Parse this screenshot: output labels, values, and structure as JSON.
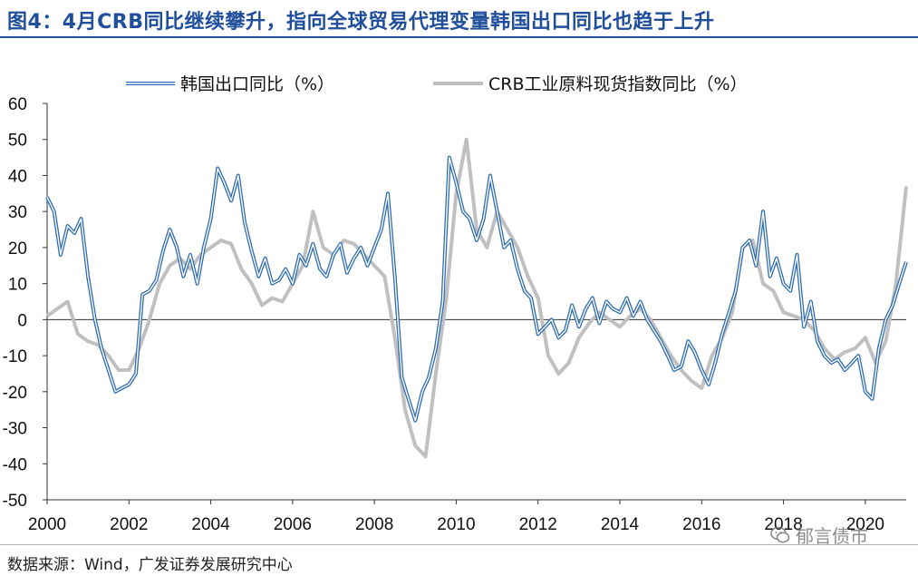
{
  "title": "图4：4月CRB同比继续攀升，指向全球贸易代理变量韩国出口同比也趋于上升",
  "source": "数据来源：Wind，广发证券发展研究中心",
  "watermark": "郁言债市",
  "colors": {
    "title": "#1f4e9c",
    "korea_line": "#2e6db4",
    "crb_line": "#c0c0c0",
    "axis": "#333333"
  },
  "chart_data": {
    "type": "line",
    "title": "",
    "xlabel": "",
    "ylabel": "",
    "ylim": [
      -50,
      60
    ],
    "yticks": [
      -50,
      -40,
      -30,
      -20,
      -10,
      0,
      10,
      20,
      30,
      40,
      50,
      60
    ],
    "xlim": [
      2000.0,
      2021.0
    ],
    "xticks": [
      2000,
      2002,
      2004,
      2006,
      2008,
      2010,
      2012,
      2014,
      2016,
      2018,
      2020
    ],
    "legend_position": "top",
    "series": [
      {
        "name": "韩国出口同比（%）",
        "style": "double-blue",
        "x": [
          2000.0,
          2000.17,
          2000.33,
          2000.5,
          2000.67,
          2000.83,
          2001.0,
          2001.17,
          2001.33,
          2001.5,
          2001.67,
          2001.83,
          2002.0,
          2002.17,
          2002.33,
          2002.5,
          2002.67,
          2002.83,
          2003.0,
          2003.17,
          2003.33,
          2003.5,
          2003.67,
          2003.83,
          2004.0,
          2004.17,
          2004.33,
          2004.5,
          2004.67,
          2004.83,
          2005.0,
          2005.17,
          2005.33,
          2005.5,
          2005.67,
          2005.83,
          2006.0,
          2006.17,
          2006.33,
          2006.5,
          2006.67,
          2006.83,
          2007.0,
          2007.17,
          2007.33,
          2007.5,
          2007.67,
          2007.83,
          2008.0,
          2008.17,
          2008.33,
          2008.5,
          2008.67,
          2008.83,
          2009.0,
          2009.17,
          2009.33,
          2009.5,
          2009.67,
          2009.83,
          2010.0,
          2010.17,
          2010.33,
          2010.5,
          2010.67,
          2010.83,
          2011.0,
          2011.17,
          2011.33,
          2011.5,
          2011.67,
          2011.83,
          2012.0,
          2012.17,
          2012.33,
          2012.5,
          2012.67,
          2012.83,
          2013.0,
          2013.17,
          2013.33,
          2013.5,
          2013.67,
          2013.83,
          2014.0,
          2014.17,
          2014.33,
          2014.5,
          2014.67,
          2014.83,
          2015.0,
          2015.17,
          2015.33,
          2015.5,
          2015.67,
          2015.83,
          2016.0,
          2016.17,
          2016.33,
          2016.5,
          2016.67,
          2016.83,
          2017.0,
          2017.17,
          2017.33,
          2017.5,
          2017.67,
          2017.83,
          2018.0,
          2018.17,
          2018.33,
          2018.5,
          2018.67,
          2018.83,
          2019.0,
          2019.17,
          2019.33,
          2019.5,
          2019.67,
          2019.83,
          2020.0,
          2020.17,
          2020.33,
          2020.5,
          2020.67,
          2020.83,
          2021.0
        ],
        "values": [
          34,
          30,
          18,
          26,
          24,
          28,
          12,
          0,
          -8,
          -14,
          -20,
          -19,
          -18,
          -15,
          7,
          8,
          11,
          19,
          25,
          20,
          12,
          18,
          10,
          20,
          28,
          42,
          38,
          33,
          40,
          27,
          19,
          12,
          17,
          10,
          11,
          14,
          10,
          18,
          15,
          21,
          14,
          12,
          18,
          21,
          13,
          17,
          20,
          15,
          20,
          25,
          35,
          12,
          -16,
          -22,
          -28,
          -20,
          -16,
          -8,
          5,
          45,
          38,
          30,
          28,
          22,
          28,
          40,
          30,
          20,
          22,
          14,
          8,
          6,
          -4,
          -2,
          0,
          -5,
          -3,
          4,
          -2,
          3,
          6,
          -1,
          5,
          3,
          2,
          6,
          1,
          5,
          0,
          -3,
          -6,
          -10,
          -14,
          -13,
          -6,
          -9,
          -14,
          -18,
          -12,
          -4,
          2,
          8,
          20,
          22,
          15,
          30,
          12,
          17,
          10,
          8,
          18,
          -2,
          5,
          -6,
          -10,
          -12,
          -11,
          -14,
          -12,
          -10,
          -20,
          -22,
          -8,
          0,
          4,
          10,
          16
        ]
      },
      {
        "name": "CRB工业原料现货指数同比（%）",
        "style": "gray-thick",
        "x": [
          2000.0,
          2000.25,
          2000.5,
          2000.75,
          2001.0,
          2001.25,
          2001.5,
          2001.75,
          2002.0,
          2002.25,
          2002.5,
          2002.75,
          2003.0,
          2003.25,
          2003.5,
          2003.75,
          2004.0,
          2004.25,
          2004.5,
          2004.75,
          2005.0,
          2005.25,
          2005.5,
          2005.75,
          2006.0,
          2006.25,
          2006.5,
          2006.75,
          2007.0,
          2007.25,
          2007.5,
          2007.75,
          2008.0,
          2008.25,
          2008.5,
          2008.75,
          2009.0,
          2009.25,
          2009.5,
          2009.75,
          2010.0,
          2010.25,
          2010.5,
          2010.75,
          2011.0,
          2011.25,
          2011.5,
          2011.75,
          2012.0,
          2012.25,
          2012.5,
          2012.75,
          2013.0,
          2013.25,
          2013.5,
          2013.75,
          2014.0,
          2014.25,
          2014.5,
          2014.75,
          2015.0,
          2015.25,
          2015.5,
          2015.75,
          2016.0,
          2016.25,
          2016.5,
          2016.75,
          2017.0,
          2017.25,
          2017.5,
          2017.75,
          2018.0,
          2018.25,
          2018.5,
          2018.75,
          2019.0,
          2019.25,
          2019.5,
          2019.75,
          2020.0,
          2020.25,
          2020.5,
          2020.75,
          2021.0
        ],
        "values": [
          1,
          3,
          5,
          -4,
          -6,
          -7,
          -10,
          -14,
          -14,
          -8,
          0,
          10,
          15,
          17,
          14,
          18,
          20,
          22,
          21,
          14,
          10,
          4,
          6,
          5,
          10,
          15,
          30,
          20,
          18,
          22,
          21,
          18,
          15,
          12,
          -5,
          -25,
          -35,
          -38,
          -15,
          5,
          35,
          50,
          25,
          20,
          30,
          25,
          20,
          12,
          6,
          -10,
          -15,
          -12,
          -5,
          -1,
          2,
          0,
          -2,
          1,
          3,
          0,
          -5,
          -10,
          -14,
          -17,
          -19,
          -10,
          -5,
          2,
          20,
          22,
          10,
          8,
          2,
          1,
          0,
          -3,
          -8,
          -11,
          -9,
          -8,
          -5,
          -12,
          -6,
          10,
          37
        ]
      }
    ]
  }
}
